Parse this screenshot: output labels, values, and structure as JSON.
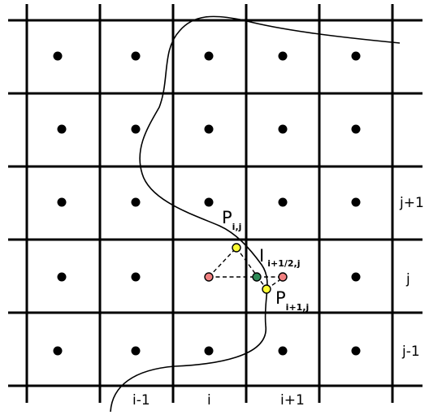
{
  "labels": {
    "columns": [
      "i-1",
      "i",
      "i+1"
    ],
    "rows": [
      "j+1",
      "j",
      "j-1"
    ],
    "p_ij": {
      "main": "P",
      "sub": "i,j"
    },
    "i_half": {
      "main": "I",
      "sub": "i+1/2,j"
    },
    "p_i1j": {
      "main": "P",
      "sub": "i+1,j"
    }
  },
  "colors": {
    "cell_center": "#000000",
    "neighbor_center": "#f08080",
    "interface_point": "#ffff33",
    "interpolation_point": "#2e8b57"
  }
}
